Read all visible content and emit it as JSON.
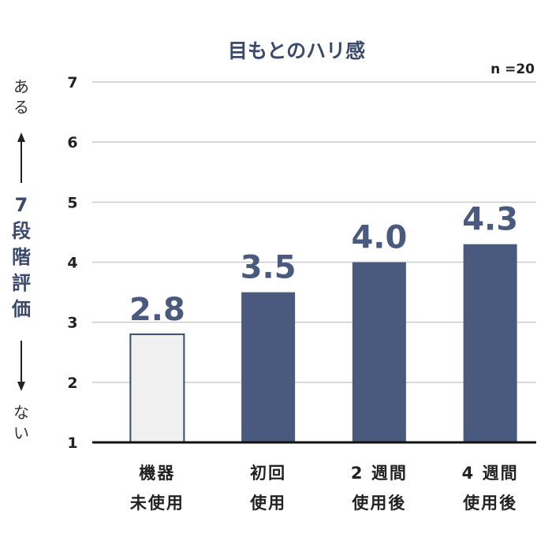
{
  "chart_data": {
    "type": "bar",
    "title": "目もとのハリ感",
    "note": "n =20",
    "ylabel": "7段階評価",
    "ylabel_top": "ある",
    "ylabel_bottom": "ない",
    "categories": [
      [
        "機器",
        "未使用"
      ],
      [
        "初回",
        "使用"
      ],
      [
        "2 週間",
        "使用後"
      ],
      [
        "4 週間",
        "使用後"
      ]
    ],
    "values": [
      2.8,
      3.5,
      4.0,
      4.3
    ],
    "data_labels": [
      "2.8",
      "3.5",
      "4.0",
      "4.3"
    ],
    "yticks": [
      1,
      2,
      3,
      4,
      5,
      6,
      7
    ],
    "ylim": [
      1,
      7
    ],
    "grid": true,
    "colors": {
      "bar_fill": [
        "#f0f0f0",
        "#4a5a7e",
        "#4a5a7e",
        "#4a5a7e"
      ],
      "bar_stroke": "#3b4a6b",
      "label": "#4a5a7e",
      "grid": "#cccccc",
      "axis": "#111111"
    }
  }
}
